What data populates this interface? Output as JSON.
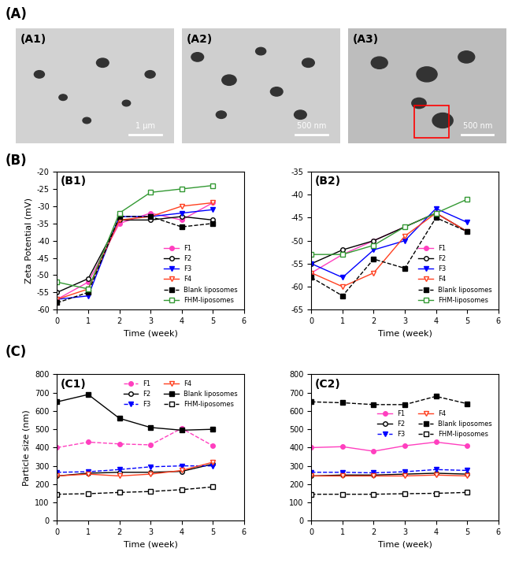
{
  "figure": {
    "panel_labels": [
      "(A)",
      "(B)",
      "(C)"
    ],
    "images": [
      {
        "label": "(A1)",
        "scale_bar": "1 µm"
      },
      {
        "label": "(A2)",
        "scale_bar": "500 nm"
      },
      {
        "label": "(A3)",
        "scale_bar": "500 nm"
      }
    ]
  },
  "chart_data": [
    {
      "type": "line",
      "title": "(B1)",
      "x_label": "Time (week)",
      "y_label": "Zeta Potential (mV)",
      "x": [
        0,
        1,
        2,
        3,
        4,
        5
      ],
      "xlim": [
        0,
        6
      ],
      "xticks": [
        0,
        1,
        2,
        3,
        4,
        5,
        6
      ],
      "ylim": [
        -60,
        -20
      ],
      "yticks": [
        -60,
        -55,
        -50,
        -45,
        -40,
        -35,
        -30,
        -25,
        -20
      ],
      "legend": "lower right",
      "series": [
        {
          "name": "F1",
          "color": "#ff3fbf",
          "marker": "circle",
          "line_style": "solid",
          "values": [
            -57,
            -52,
            -35,
            -32,
            -34,
            -29
          ]
        },
        {
          "name": "F2",
          "color": "#000000",
          "marker": "open_circle",
          "line_style": "solid",
          "values": [
            -55,
            -51,
            -34,
            -34,
            -33,
            -34
          ]
        },
        {
          "name": "F3",
          "color": "#0000ff",
          "marker": "triangle_down",
          "line_style": "solid",
          "values": [
            -57,
            -56,
            -33,
            -33,
            -32,
            -31
          ]
        },
        {
          "name": "F4",
          "color": "#ff4020",
          "marker": "open_triangle_down",
          "line_style": "solid",
          "values": [
            -57,
            -54,
            -34,
            -33,
            -30,
            -29
          ]
        },
        {
          "name": "Blank liposomes",
          "color": "#000000",
          "marker": "square",
          "line_style": "dashed",
          "values": [
            -58,
            -55,
            -33,
            -33,
            -36,
            -35
          ]
        },
        {
          "name": "FHM-liposomes",
          "color": "#339933",
          "marker": "open_square",
          "line_style": "solid",
          "values": [
            -52,
            -54,
            -32,
            -26,
            -25,
            -24
          ]
        }
      ]
    },
    {
      "type": "line",
      "title": "(B2)",
      "x_label": "Time (week)",
      "x": [
        0,
        1,
        2,
        3,
        4,
        5
      ],
      "xlim": [
        0,
        6
      ],
      "xticks": [
        0,
        1,
        2,
        3,
        4,
        5,
        6
      ],
      "ylim": [
        -65,
        -35
      ],
      "yticks": [
        -65,
        -60,
        -55,
        -50,
        -45,
        -40,
        -35
      ],
      "legend": "lower right",
      "series": [
        {
          "name": "F1",
          "color": "#ff3fbf",
          "marker": "circle",
          "line_style": "solid",
          "values": [
            -57,
            -53,
            -50,
            -47,
            -44,
            -48
          ]
        },
        {
          "name": "F2",
          "color": "#000000",
          "marker": "open_circle",
          "line_style": "solid",
          "values": [
            -55,
            -52,
            -50,
            -47,
            -44,
            -48
          ]
        },
        {
          "name": "F3",
          "color": "#0000ff",
          "marker": "triangle_down",
          "line_style": "solid",
          "values": [
            -55,
            -58,
            -52,
            -50,
            -43,
            -46
          ]
        },
        {
          "name": "F4",
          "color": "#ff4020",
          "marker": "open_triangle_down",
          "line_style": "solid",
          "values": [
            -57,
            -60,
            -57,
            -49,
            -44,
            -48
          ]
        },
        {
          "name": "Blank liposomes",
          "color": "#000000",
          "marker": "square",
          "line_style": "dashed",
          "values": [
            -58,
            -62,
            -54,
            -56,
            -45,
            -48
          ]
        },
        {
          "name": "FHM-liposomes",
          "color": "#339933",
          "marker": "open_square",
          "line_style": "solid",
          "values": [
            -53,
            -53,
            -51,
            -47,
            -44,
            -41
          ]
        }
      ]
    },
    {
      "type": "line",
      "title": "(C1)",
      "x_label": "Time (week)",
      "y_label": "Particle size (nm)",
      "x": [
        0,
        1,
        2,
        3,
        4,
        5
      ],
      "xlim": [
        0,
        6
      ],
      "xticks": [
        0,
        1,
        2,
        3,
        4,
        5,
        6
      ],
      "ylim": [
        0,
        800
      ],
      "yticks": [
        0,
        100,
        200,
        300,
        400,
        500,
        600,
        700,
        800
      ],
      "legend": "upper right",
      "series": [
        {
          "name": "F1",
          "color": "#ff3fbf",
          "marker": "circle",
          "line_style": "dashed",
          "values": [
            400,
            430,
            420,
            415,
            505,
            410
          ]
        },
        {
          "name": "F2",
          "color": "#000000",
          "marker": "open_circle",
          "line_style": "solid",
          "values": [
            245,
            260,
            265,
            265,
            270,
            310
          ]
        },
        {
          "name": "F3",
          "color": "#0000ff",
          "marker": "triangle_down",
          "line_style": "dashed",
          "values": [
            265,
            268,
            280,
            295,
            300,
            300
          ]
        },
        {
          "name": "F4",
          "color": "#ff4020",
          "marker": "open_triangle_down",
          "line_style": "solid",
          "values": [
            245,
            255,
            245,
            255,
            275,
            320
          ]
        },
        {
          "name": "Blank liposomes",
          "color": "#000000",
          "marker": "square",
          "line_style": "solid",
          "values": [
            650,
            690,
            560,
            510,
            495,
            500
          ]
        },
        {
          "name": "FHM-liposomes",
          "color": "#000000",
          "marker": "open_square",
          "line_style": "dashed",
          "values": [
            145,
            148,
            155,
            160,
            170,
            185
          ]
        }
      ]
    },
    {
      "type": "line",
      "title": "(C2)",
      "x_label": "Time (week)",
      "x": [
        0,
        1,
        2,
        3,
        4,
        5
      ],
      "xlim": [
        0,
        6
      ],
      "xticks": [
        0,
        1,
        2,
        3,
        4,
        5,
        6
      ],
      "ylim": [
        0,
        800
      ],
      "yticks": [
        0,
        100,
        200,
        300,
        400,
        500,
        600,
        700,
        800
      ],
      "legend": "center right",
      "series": [
        {
          "name": "F1",
          "color": "#ff3fbf",
          "marker": "circle",
          "line_style": "solid",
          "values": [
            400,
            405,
            380,
            410,
            430,
            410
          ]
        },
        {
          "name": "F2",
          "color": "#000000",
          "marker": "open_circle",
          "line_style": "solid",
          "values": [
            245,
            250,
            250,
            255,
            260,
            255
          ]
        },
        {
          "name": "F3",
          "color": "#0000ff",
          "marker": "triangle_down",
          "line_style": "dashed",
          "values": [
            265,
            265,
            262,
            268,
            280,
            275
          ]
        },
        {
          "name": "F4",
          "color": "#ff4020",
          "marker": "open_triangle_down",
          "line_style": "solid",
          "values": [
            245,
            245,
            245,
            245,
            250,
            245
          ]
        },
        {
          "name": "Blank liposomes",
          "color": "#000000",
          "marker": "square",
          "line_style": "dashed",
          "values": [
            650,
            645,
            635,
            635,
            680,
            640
          ]
        },
        {
          "name": "FHM-liposomes",
          "color": "#000000",
          "marker": "open_square",
          "line_style": "dashed",
          "values": [
            145,
            145,
            145,
            148,
            150,
            155
          ]
        }
      ]
    }
  ]
}
